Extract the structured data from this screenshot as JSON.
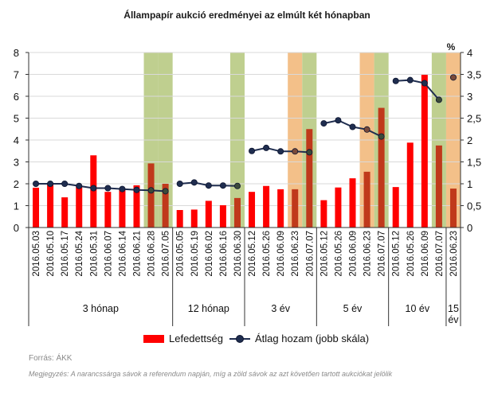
{
  "title": "Állampapír aukció eredményei az elmúlt két hónapban",
  "source": "Forrás: ÁKK",
  "note": "Megjegyzés: A narancssárga sávok a referendum napján, míg a zöld sávok az azt követően tartott aukciókat jelölik",
  "legend": {
    "bar_label": "Lefedettség",
    "line_label": "Átlag hozam (jobb skála)"
  },
  "colors": {
    "bar": "#ff0000",
    "bar_highlight": "#c0391b",
    "line": "#1f2d4f",
    "orange_band": "#f3c089",
    "green_band": "#bfcf8f"
  },
  "chart_data": {
    "type": "bar",
    "title": "Állampapír aukció eredményei az elmúlt két hónapban",
    "left_axis": {
      "min": 0,
      "max": 8,
      "ticks": [
        0,
        1,
        2,
        3,
        4,
        5,
        6,
        7,
        8
      ]
    },
    "right_axis": {
      "min": 0,
      "max": 4,
      "unit": "%",
      "ticks": [
        "0",
        "0,5",
        "1",
        "1,5",
        "2",
        "2,5",
        "3",
        "3,5",
        "4"
      ]
    },
    "groups": [
      {
        "label": "3 hónap",
        "categories": [
          "2016.05.03",
          "2016.05.10",
          "2016.05.17",
          "2016.05.24",
          "2016.05.31",
          "2016.06.07",
          "2016.06.14",
          "2016.06.21",
          "2016.06.28",
          "2016.07.05"
        ],
        "coverage": [
          1.82,
          1.98,
          1.38,
          1.9,
          3.3,
          1.63,
          1.8,
          1.93,
          2.93,
          2.0
        ],
        "yield": [
          1.0,
          1.0,
          1.0,
          0.95,
          0.9,
          0.9,
          0.88,
          0.86,
          0.85,
          0.83
        ],
        "bands": [
          "none",
          "none",
          "none",
          "none",
          "none",
          "none",
          "none",
          "none",
          "green",
          "green"
        ]
      },
      {
        "label": "12 hónap",
        "categories": [
          "2016.05.05",
          "2016.05.19",
          "2016.06.02",
          "2016.06.16",
          "2016.06.30"
        ],
        "coverage": [
          0.8,
          0.82,
          1.22,
          1.02,
          1.35
        ],
        "yield": [
          1.0,
          1.03,
          0.96,
          0.96,
          0.95
        ],
        "bands": [
          "none",
          "none",
          "none",
          "none",
          "green"
        ]
      },
      {
        "label": "3 év",
        "categories": [
          "2016.05.12",
          "2016.05.26",
          "2016.06.09",
          "2016.06.23",
          "2016.07.07"
        ],
        "coverage": [
          1.63,
          1.9,
          1.75,
          1.75,
          4.5
        ],
        "yield": [
          1.75,
          1.82,
          1.74,
          1.74,
          1.72
        ],
        "bands": [
          "none",
          "none",
          "none",
          "orange",
          "green"
        ]
      },
      {
        "label": "5 év",
        "categories": [
          "2016.05.12",
          "2016.05.26",
          "2016.06.09",
          "2016.06.23",
          "2016.07.07"
        ],
        "coverage": [
          1.25,
          1.83,
          2.25,
          2.55,
          5.47
        ],
        "yield": [
          2.38,
          2.45,
          2.3,
          2.24,
          2.08
        ],
        "bands": [
          "none",
          "none",
          "none",
          "orange",
          "green"
        ]
      },
      {
        "label": "10 év",
        "categories": [
          "2016.05.12",
          "2016.05.26",
          "2016.06.09",
          "2016.07.07"
        ],
        "coverage": [
          1.85,
          3.88,
          6.98,
          3.75
        ],
        "yield": [
          3.35,
          3.37,
          3.3,
          2.92
        ],
        "bands": [
          "none",
          "none",
          "none",
          "green"
        ]
      },
      {
        "label": "15 év",
        "categories": [
          "2016.06.23"
        ],
        "coverage": [
          1.78
        ],
        "yield": [
          3.43
        ],
        "bands": [
          "orange"
        ]
      }
    ]
  }
}
